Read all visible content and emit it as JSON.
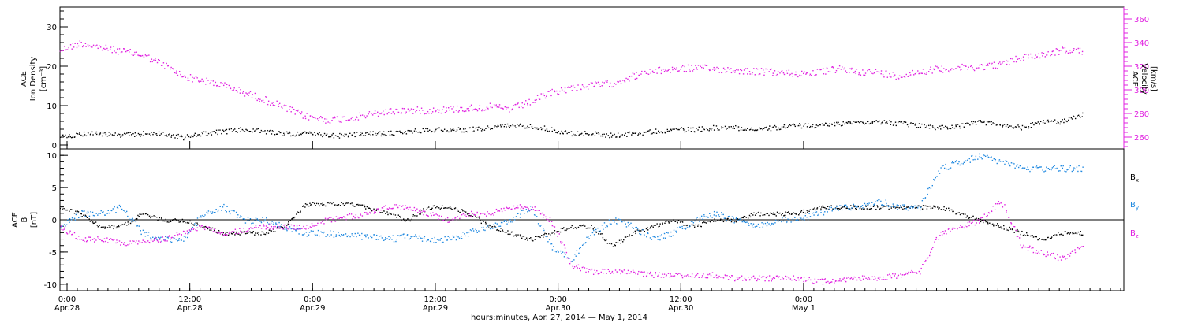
{
  "colors": {
    "black": "#000000",
    "magenta": "#e020e0",
    "blue": "#1e88e0"
  },
  "chart_data": [
    {
      "type": "scatter",
      "panel": "top",
      "ylabel_left": [
        "ACE",
        "Ion Density",
        "[cm⁻³]"
      ],
      "ylabel_right": [
        "ACE",
        "Velocity",
        "[km/s]"
      ],
      "ylim_left": [
        -1,
        35
      ],
      "ylim_right": [
        250,
        370
      ],
      "left_ticks": [
        "0",
        "10",
        "20",
        "30"
      ],
      "right_ticks": [
        "260",
        "280",
        "300",
        "320",
        "340",
        "360"
      ],
      "x_hours_start": 0,
      "x_hours_end": 104,
      "series": [
        {
          "axis": "left",
          "color": "#000000",
          "hours": [
            0,
            2,
            4,
            6,
            8,
            10,
            12,
            14,
            16,
            18,
            20,
            22,
            24,
            26,
            28,
            30,
            32,
            34,
            36,
            38,
            40,
            42,
            44,
            46,
            48,
            50,
            52,
            54,
            56,
            58,
            60,
            62,
            64,
            66,
            68,
            70,
            72,
            74,
            76,
            78,
            80,
            82,
            84,
            86,
            88,
            90,
            92,
            94,
            96,
            98,
            100
          ],
          "values": [
            2,
            3,
            3,
            2.5,
            3,
            3,
            2,
            3,
            3.5,
            4,
            3.5,
            3,
            3,
            2.5,
            2.5,
            3,
            3,
            3.5,
            4,
            4,
            4,
            4.5,
            5,
            5,
            4,
            3,
            3,
            2.5,
            3,
            3.5,
            4,
            4,
            4.5,
            4.5,
            4,
            4.5,
            5,
            5,
            5.5,
            6,
            6,
            5.5,
            5,
            4.5,
            5,
            6,
            5,
            4.5,
            6,
            6,
            8
          ]
        },
        {
          "axis": "right",
          "color": "#e020e0",
          "hours": [
            0,
            2,
            4,
            6,
            8,
            10,
            12,
            14,
            16,
            18,
            20,
            22,
            24,
            26,
            28,
            30,
            32,
            34,
            36,
            38,
            40,
            42,
            44,
            46,
            48,
            50,
            52,
            54,
            56,
            58,
            60,
            62,
            64,
            66,
            68,
            70,
            72,
            74,
            76,
            78,
            80,
            82,
            84,
            86,
            88,
            90,
            92,
            94,
            96,
            98,
            100
          ],
          "values": [
            334,
            340,
            336,
            333,
            330,
            322,
            312,
            308,
            304,
            298,
            292,
            285,
            278,
            275,
            276,
            279,
            282,
            283,
            283,
            284,
            285,
            286,
            284,
            290,
            298,
            302,
            304,
            306,
            312,
            316,
            318,
            319,
            318,
            317,
            316,
            315,
            314,
            315,
            318,
            316,
            315,
            312,
            316,
            318,
            319,
            320,
            322,
            328,
            330,
            334,
            333
          ]
        }
      ]
    },
    {
      "type": "scatter",
      "panel": "bottom",
      "ylabel_left": [
        "ACE",
        "B",
        "[nT]"
      ],
      "ylim": [
        -11,
        11
      ],
      "left_ticks": [
        "-10",
        "-5",
        "0",
        "5",
        "10"
      ],
      "legend": [
        {
          "label": "B",
          "sub": "x",
          "color": "#000000"
        },
        {
          "label": "B",
          "sub": "y",
          "color": "#1e88e0"
        },
        {
          "label": "B",
          "sub": "z",
          "color": "#e020e0"
        }
      ],
      "x_hours_start": 0,
      "x_hours_end": 104,
      "series": [
        {
          "name": "Bx",
          "color": "#000000",
          "hours": [
            0,
            2,
            4,
            6,
            8,
            10,
            12,
            14,
            16,
            18,
            20,
            22,
            24,
            26,
            28,
            30,
            32,
            34,
            36,
            38,
            40,
            42,
            44,
            46,
            48,
            50,
            52,
            54,
            56,
            58,
            60,
            62,
            64,
            66,
            68,
            70,
            72,
            74,
            76,
            78,
            80,
            82,
            84,
            86,
            88,
            90,
            92,
            94,
            96,
            98,
            100
          ],
          "values": [
            2,
            1,
            -1,
            -1,
            1,
            0,
            0,
            -1,
            -2,
            -2,
            -2,
            -1,
            2.5,
            2.5,
            2.5,
            2,
            1,
            0,
            2,
            2,
            1,
            -1,
            -2,
            -3,
            -2,
            -1,
            -1,
            -4,
            -2,
            -1,
            0,
            -1,
            0,
            0,
            1,
            1,
            1,
            2,
            2,
            2,
            2,
            2,
            2,
            2,
            1,
            0,
            -1,
            -2,
            -3,
            -2,
            -2
          ]
        },
        {
          "name": "By",
          "color": "#1e88e0",
          "hours": [
            0,
            2,
            4,
            6,
            8,
            10,
            12,
            14,
            16,
            18,
            20,
            22,
            24,
            26,
            28,
            30,
            32,
            34,
            36,
            38,
            40,
            42,
            44,
            46,
            48,
            50,
            52,
            54,
            56,
            58,
            60,
            62,
            64,
            66,
            68,
            70,
            72,
            74,
            76,
            78,
            80,
            82,
            84,
            86,
            88,
            90,
            92,
            94,
            96,
            98,
            100
          ],
          "values": [
            -1,
            1,
            1,
            2,
            -2,
            -3,
            -3,
            1,
            2,
            0,
            0,
            -1,
            -2,
            -2,
            -2.5,
            -2.5,
            -3,
            -2.5,
            -3,
            -3,
            -2,
            -1,
            0,
            2,
            -4,
            -6,
            -2,
            0,
            -1,
            -3,
            -2,
            0,
            1,
            0,
            -1,
            0,
            0,
            1,
            2,
            2,
            3,
            2,
            2,
            8,
            9,
            10,
            9,
            8,
            8,
            8,
            8
          ]
        },
        {
          "name": "Bz",
          "color": "#e020e0",
          "hours": [
            0,
            2,
            4,
            6,
            8,
            10,
            12,
            14,
            16,
            18,
            20,
            22,
            24,
            26,
            28,
            30,
            32,
            34,
            36,
            38,
            40,
            42,
            44,
            46,
            48,
            50,
            52,
            54,
            56,
            58,
            60,
            62,
            64,
            66,
            68,
            70,
            72,
            74,
            76,
            78,
            80,
            82,
            84,
            86,
            88,
            90,
            92,
            94,
            96,
            98,
            100
          ],
          "values": [
            -1,
            -3,
            -3,
            -3.5,
            -3.5,
            -3,
            -2,
            -1,
            -2,
            -1.5,
            -1,
            -1,
            -1,
            0,
            0.5,
            1,
            2,
            2,
            1,
            0,
            1,
            1,
            2,
            2,
            0,
            -7,
            -8,
            -8,
            -8,
            -8.5,
            -8.5,
            -8.5,
            -8.5,
            -9,
            -9,
            -9,
            -9,
            -9.5,
            -9.5,
            -9,
            -9,
            -8.5,
            -8,
            -2,
            -1,
            0,
            3,
            -4,
            -5,
            -6,
            -4
          ]
        }
      ]
    }
  ],
  "x_axis": {
    "ticks": [
      {
        "time": "0:00",
        "date": "Apr.28"
      },
      {
        "time": "12:00",
        "date": "Apr.28"
      },
      {
        "time": "0:00",
        "date": "Apr.29"
      },
      {
        "time": "12:00",
        "date": "Apr.29"
      },
      {
        "time": "0:00",
        "date": "Apr.30"
      },
      {
        "time": "12:00",
        "date": "Apr.30"
      },
      {
        "time": "0:00",
        "date": "May  1"
      }
    ],
    "title": "hours:minutes, Apr. 27, 2014 — May  1, 2014"
  }
}
